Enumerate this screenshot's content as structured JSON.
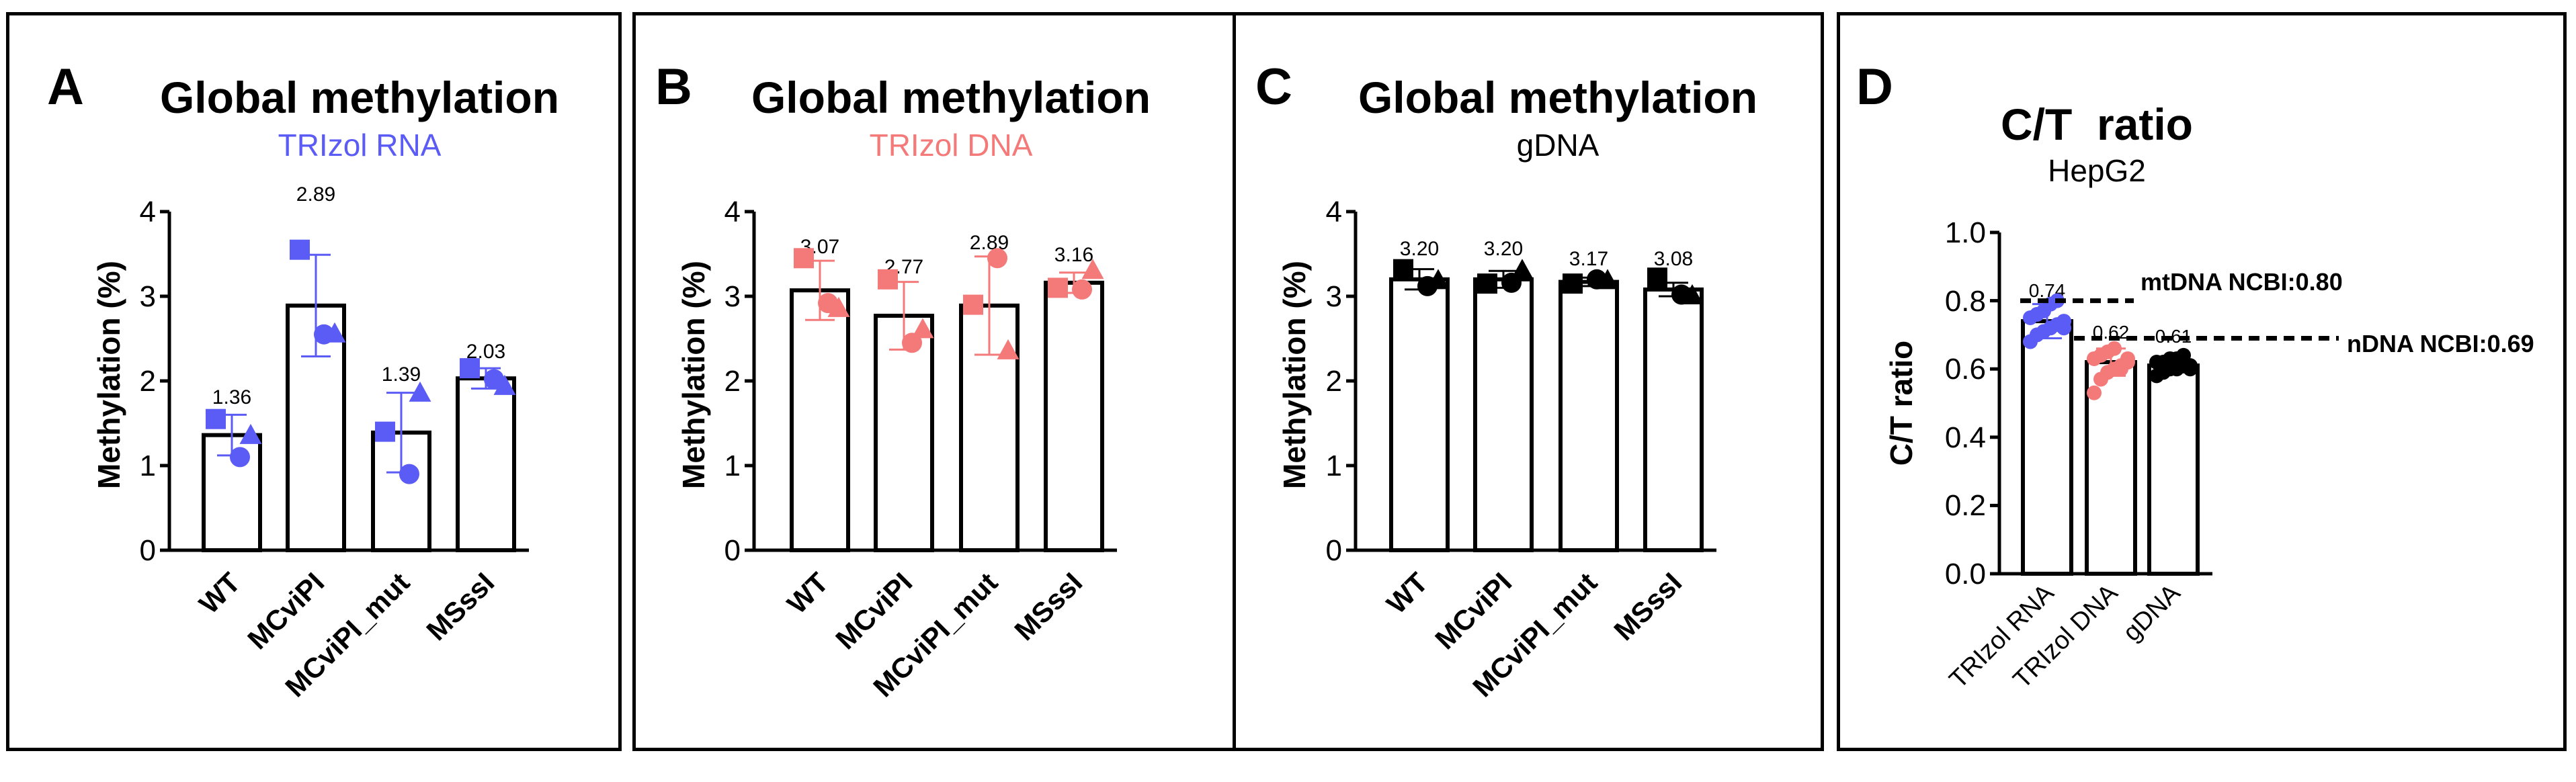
{
  "chart_data": [
    {
      "type": "bar",
      "panel_letter": "A",
      "title": "Global methylation",
      "subtitle": "TRIzol RNA",
      "subtitle_color": "#5b5bf5",
      "ylabel": "Methylation (%)",
      "xlabel": "",
      "ylim": [
        0,
        4
      ],
      "yticks": [
        "0",
        "1",
        "2",
        "3",
        "4"
      ],
      "categories": [
        "WT",
        "MCviPI",
        "MCviPI_mut",
        "MSssI"
      ],
      "values": [
        1.36,
        2.89,
        1.39,
        2.03
      ],
      "value_labels": [
        "1.36",
        "2.89",
        "1.39",
        "2.03"
      ],
      "error": [
        0.24,
        0.6,
        0.47,
        0.12
      ],
      "point_color": "#5b5bf5",
      "points": [
        [
          {
            "shape": "square",
            "y": 1.55
          },
          {
            "shape": "circle",
            "y": 1.1
          },
          {
            "shape": "triangle",
            "y": 1.35
          }
        ],
        [
          {
            "shape": "square",
            "y": 3.55
          },
          {
            "shape": "circle",
            "y": 2.55
          },
          {
            "shape": "triangle",
            "y": 2.55
          }
        ],
        [
          {
            "shape": "square",
            "y": 1.4
          },
          {
            "shape": "circle",
            "y": 0.9
          },
          {
            "shape": "triangle",
            "y": 1.85
          }
        ],
        [
          {
            "shape": "square",
            "y": 2.15
          },
          {
            "shape": "circle",
            "y": 2.02
          },
          {
            "shape": "triangle",
            "y": 1.93
          }
        ]
      ]
    },
    {
      "type": "bar",
      "panel_letter": "B",
      "title": "Global methylation",
      "subtitle": "TRIzol DNA",
      "subtitle_color": "#f47a7a",
      "ylabel": "Methylation (%)",
      "xlabel": "",
      "ylim": [
        0,
        4
      ],
      "yticks": [
        "0",
        "1",
        "2",
        "3",
        "4"
      ],
      "categories": [
        "WT",
        "MCviPI",
        "MCviPI_mut",
        "MSssI"
      ],
      "values": [
        3.07,
        2.77,
        2.89,
        3.16
      ],
      "value_labels": [
        "3.07",
        "2.77",
        "2.89",
        "3.16"
      ],
      "error": [
        0.35,
        0.4,
        0.58,
        0.12
      ],
      "point_color": "#f47a7a",
      "points": [
        [
          {
            "shape": "square",
            "y": 3.45
          },
          {
            "shape": "circle",
            "y": 2.92
          },
          {
            "shape": "triangle",
            "y": 2.85
          }
        ],
        [
          {
            "shape": "square",
            "y": 3.2
          },
          {
            "shape": "circle",
            "y": 2.45
          },
          {
            "shape": "triangle",
            "y": 2.6
          }
        ],
        [
          {
            "shape": "square",
            "y": 2.9
          },
          {
            "shape": "circle",
            "y": 3.45
          },
          {
            "shape": "triangle",
            "y": 2.35
          }
        ],
        [
          {
            "shape": "square",
            "y": 3.1
          },
          {
            "shape": "circle",
            "y": 3.08
          },
          {
            "shape": "triangle",
            "y": 3.3
          }
        ]
      ]
    },
    {
      "type": "bar",
      "panel_letter": "C",
      "title": "Global methylation",
      "subtitle": "gDNA",
      "subtitle_color": "#000000",
      "ylabel": "Methylation (%)",
      "xlabel": "",
      "ylim": [
        0,
        4
      ],
      "yticks": [
        "0",
        "1",
        "2",
        "3",
        "4"
      ],
      "categories": [
        "WT",
        "MCviPI",
        "MCviPI_mut",
        "MSssI"
      ],
      "values": [
        3.2,
        3.2,
        3.17,
        3.08
      ],
      "value_labels": [
        "3.20",
        "3.20",
        "3.17",
        "3.08"
      ],
      "error": [
        0.12,
        0.1,
        0.05,
        0.08
      ],
      "point_color": "#000000",
      "points": [
        [
          {
            "shape": "square",
            "y": 3.32
          },
          {
            "shape": "circle",
            "y": 3.12
          },
          {
            "shape": "triangle",
            "y": 3.18
          }
        ],
        [
          {
            "shape": "square",
            "y": 3.15
          },
          {
            "shape": "circle",
            "y": 3.16
          },
          {
            "shape": "triangle",
            "y": 3.3
          }
        ],
        [
          {
            "shape": "square",
            "y": 3.15
          },
          {
            "shape": "circle",
            "y": 3.2
          },
          {
            "shape": "triangle",
            "y": 3.18
          }
        ],
        [
          {
            "shape": "square",
            "y": 3.22
          },
          {
            "shape": "circle",
            "y": 3.02
          },
          {
            "shape": "triangle",
            "y": 3.0
          }
        ]
      ]
    },
    {
      "type": "bar",
      "panel_letter": "D",
      "title": "C/T  ratio",
      "subtitle": "HepG2",
      "subtitle_color": "#000000",
      "ylabel": "C/T ratio",
      "xlabel": "",
      "ylim": [
        0,
        1
      ],
      "yticks": [
        "0.0",
        "0.2",
        "0.4",
        "0.6",
        "0.8",
        "1.0"
      ],
      "categories": [
        "TRIzol RNA",
        "TRIzol DNA",
        "gDNA"
      ],
      "values": [
        0.74,
        0.62,
        0.61
      ],
      "value_labels": [
        "0.74",
        "0.62",
        "0.61"
      ],
      "error": [
        0.05,
        0.04,
        0.02
      ],
      "point_colors": [
        "#5b5bf5",
        "#f47a7a",
        "#000000"
      ],
      "points": [
        [
          0.68,
          0.7,
          0.71,
          0.72,
          0.73,
          0.74,
          0.75,
          0.76,
          0.77,
          0.79,
          0.8,
          0.72
        ],
        [
          0.53,
          0.57,
          0.59,
          0.6,
          0.61,
          0.62,
          0.63,
          0.64,
          0.65,
          0.66,
          0.6,
          0.63
        ],
        [
          0.58,
          0.59,
          0.6,
          0.6,
          0.61,
          0.61,
          0.62,
          0.62,
          0.63,
          0.63,
          0.64,
          0.6
        ]
      ],
      "reference_lines": [
        {
          "label": "mtDNA NCBI:0.80",
          "value": 0.8
        },
        {
          "label": "nDNA NCBI:0.69",
          "value": 0.69
        }
      ]
    }
  ]
}
